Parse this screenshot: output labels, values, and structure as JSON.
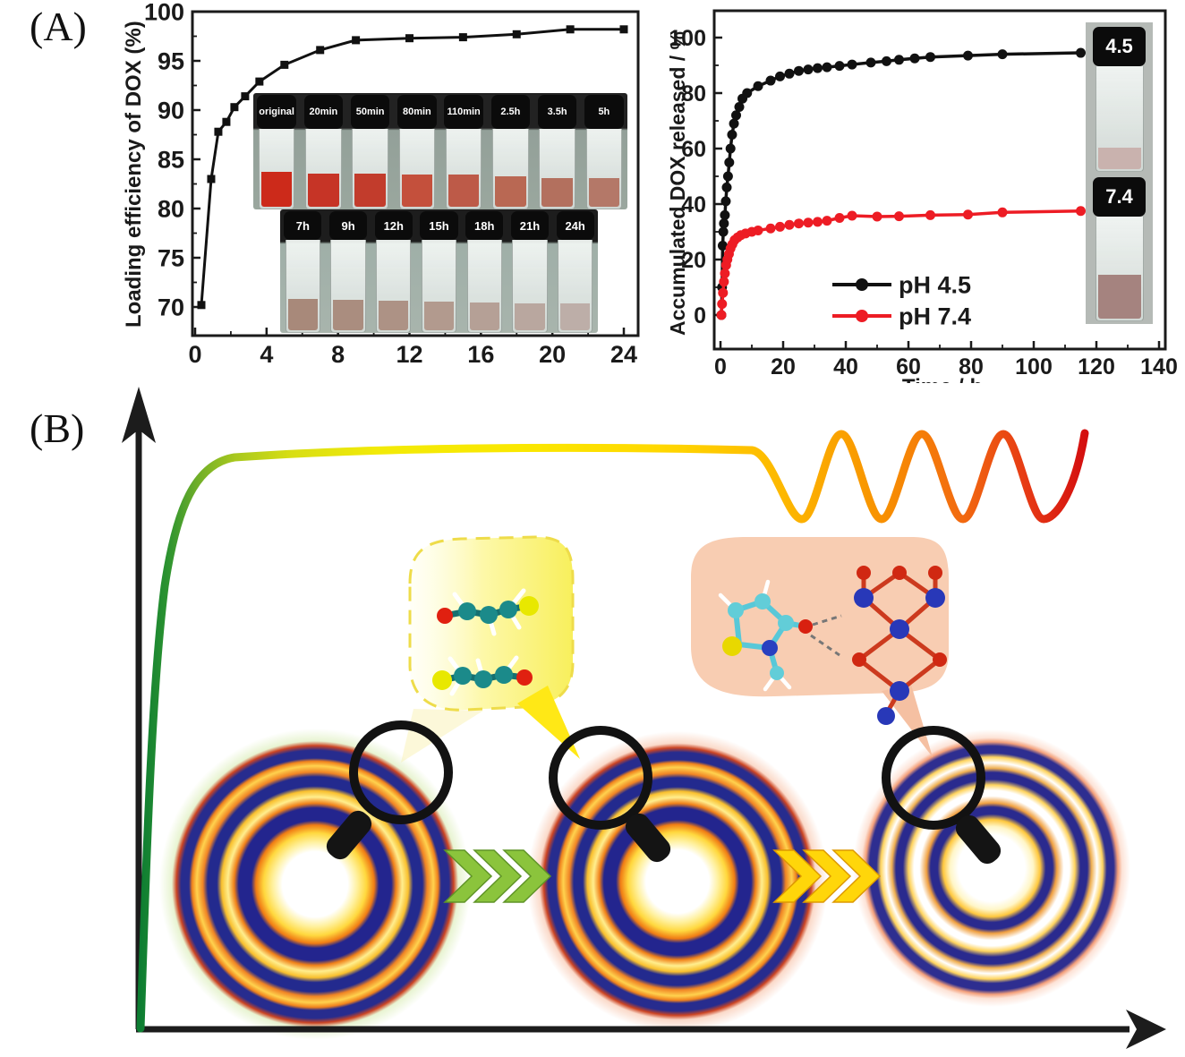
{
  "panels": {
    "a_label": "(A)",
    "b_label": "(B)"
  },
  "chart_data": [
    {
      "id": "loading-efficiency",
      "type": "line",
      "title": "",
      "xlabel": "",
      "ylabel": "Loading efficiency of DOX (%)",
      "xlim": [
        0,
        24
      ],
      "ylim": [
        70,
        100
      ],
      "xticks": [
        0,
        4,
        8,
        12,
        16,
        20,
        24
      ],
      "yticks": [
        70,
        75,
        80,
        85,
        90,
        95,
        100
      ],
      "grid": false,
      "series": [
        {
          "name": "loading efficiency",
          "color": "#111111",
          "marker": "square",
          "x": [
            0.35,
            0.9,
            1.3,
            1.75,
            2.2,
            2.8,
            3.6,
            5.0,
            7.0,
            9.0,
            12.0,
            15.0,
            18.0,
            21.0,
            24.0
          ],
          "y": [
            70.2,
            83.0,
            87.8,
            88.8,
            90.3,
            91.4,
            92.9,
            94.6,
            96.1,
            97.1,
            97.3,
            97.4,
            97.7,
            98.2,
            98.2
          ]
        }
      ],
      "inset_photo": {
        "rows": [
          {
            "labels": [
              "original",
              "20min",
              "50min",
              "80min",
              "110min",
              "2.5h",
              "3.5h",
              "5h"
            ],
            "liquid_colors": [
              "#cc2a1a",
              "#c63426",
              "#c23c2c",
              "#c4503c",
              "#bd5a48",
              "#b96853",
              "#b3705e",
              "#b47868"
            ],
            "liquid_heights": [
              44,
              42,
              42,
              40,
              40,
              38,
              36,
              36
            ]
          },
          {
            "labels": [
              "7h",
              "9h",
              "12h",
              "15h",
              "18h",
              "21h",
              "24h"
            ],
            "liquid_colors": [
              "#a8897a",
              "#aa8d7f",
              "#ad9285",
              "#b29a8e",
              "#b5a096",
              "#b9a79f",
              "#bdaea8"
            ],
            "liquid_heights": [
              34,
              33,
              32,
              31,
              30,
              29,
              29
            ]
          }
        ]
      }
    },
    {
      "id": "dox-release",
      "type": "line",
      "title": "",
      "xlabel": "Time / h",
      "ylabel": "Accumulated DOX released / %",
      "xlim": [
        0,
        140
      ],
      "ylim": [
        0,
        100
      ],
      "xticks": [
        0,
        20,
        40,
        60,
        80,
        100,
        120,
        140
      ],
      "yticks": [
        0,
        20,
        40,
        60,
        80,
        100
      ],
      "grid": false,
      "legend": {
        "position": "inside-bottom-center",
        "items": [
          {
            "label": "pH 4.5",
            "color": "#111111"
          },
          {
            "label": "pH 7.4",
            "color": "#ed1c24"
          }
        ]
      },
      "series": [
        {
          "name": "pH 4.5",
          "color": "#111111",
          "marker": "circle",
          "x": [
            0.3,
            0.5,
            0.7,
            0.9,
            1.1,
            1.4,
            1.7,
            2.0,
            2.4,
            2.8,
            3.2,
            3.7,
            4.3,
            5.0,
            6.0,
            7.0,
            8.5,
            12,
            16,
            19,
            22,
            25,
            28,
            31,
            34,
            38,
            42,
            48,
            53,
            57,
            62,
            67,
            79,
            90,
            115
          ],
          "y": [
            0,
            10,
            25,
            30,
            33,
            36,
            41,
            46,
            50,
            55,
            60,
            65,
            69,
            72,
            75,
            78,
            80,
            82.5,
            84.5,
            86,
            87,
            88,
            88.5,
            89,
            89.3,
            89.8,
            90.3,
            91,
            91.5,
            92,
            92.5,
            93,
            93.5,
            94,
            94.5
          ]
        },
        {
          "name": "pH 7.4",
          "color": "#ed1c24",
          "marker": "circle",
          "x": [
            0.3,
            0.5,
            0.8,
            1.1,
            1.4,
            1.8,
            2.2,
            2.7,
            3.2,
            3.8,
            4.5,
            5.5,
            6.5,
            8,
            10,
            12,
            16,
            19,
            22,
            25,
            28,
            31,
            34,
            38,
            42,
            50,
            57,
            67,
            79,
            90,
            115
          ],
          "y": [
            0,
            4,
            8,
            12,
            15,
            18,
            20,
            22,
            24,
            25.5,
            27,
            28,
            28.8,
            29.4,
            30,
            30.5,
            31.2,
            31.8,
            32.5,
            33,
            33.3,
            33.6,
            34,
            35,
            35.8,
            35.5,
            35.6,
            36,
            36.2,
            37,
            37.5
          ]
        }
      ],
      "inset_vials": [
        {
          "label": "4.5",
          "liquid_color": "#c9b2ae",
          "liquid_height": 20
        },
        {
          "label": "7.4",
          "liquid_color": "#a5837f",
          "liquid_height": 42
        }
      ]
    }
  ],
  "panel_b": {
    "colors": {
      "curve_green": "#0d7d32",
      "curve_yellow": "#fae800",
      "curve_orange": "#f89300",
      "curve_red": "#d40f0f",
      "ring_navy": "#232a8e",
      "ring_yellow": "#ffd24e",
      "chevron_green": "#8bc43c",
      "chevron_yellow": "#ffd60a",
      "callout_yellow": "#f8ef5c",
      "callout_pink": "#f8cdb2"
    }
  }
}
